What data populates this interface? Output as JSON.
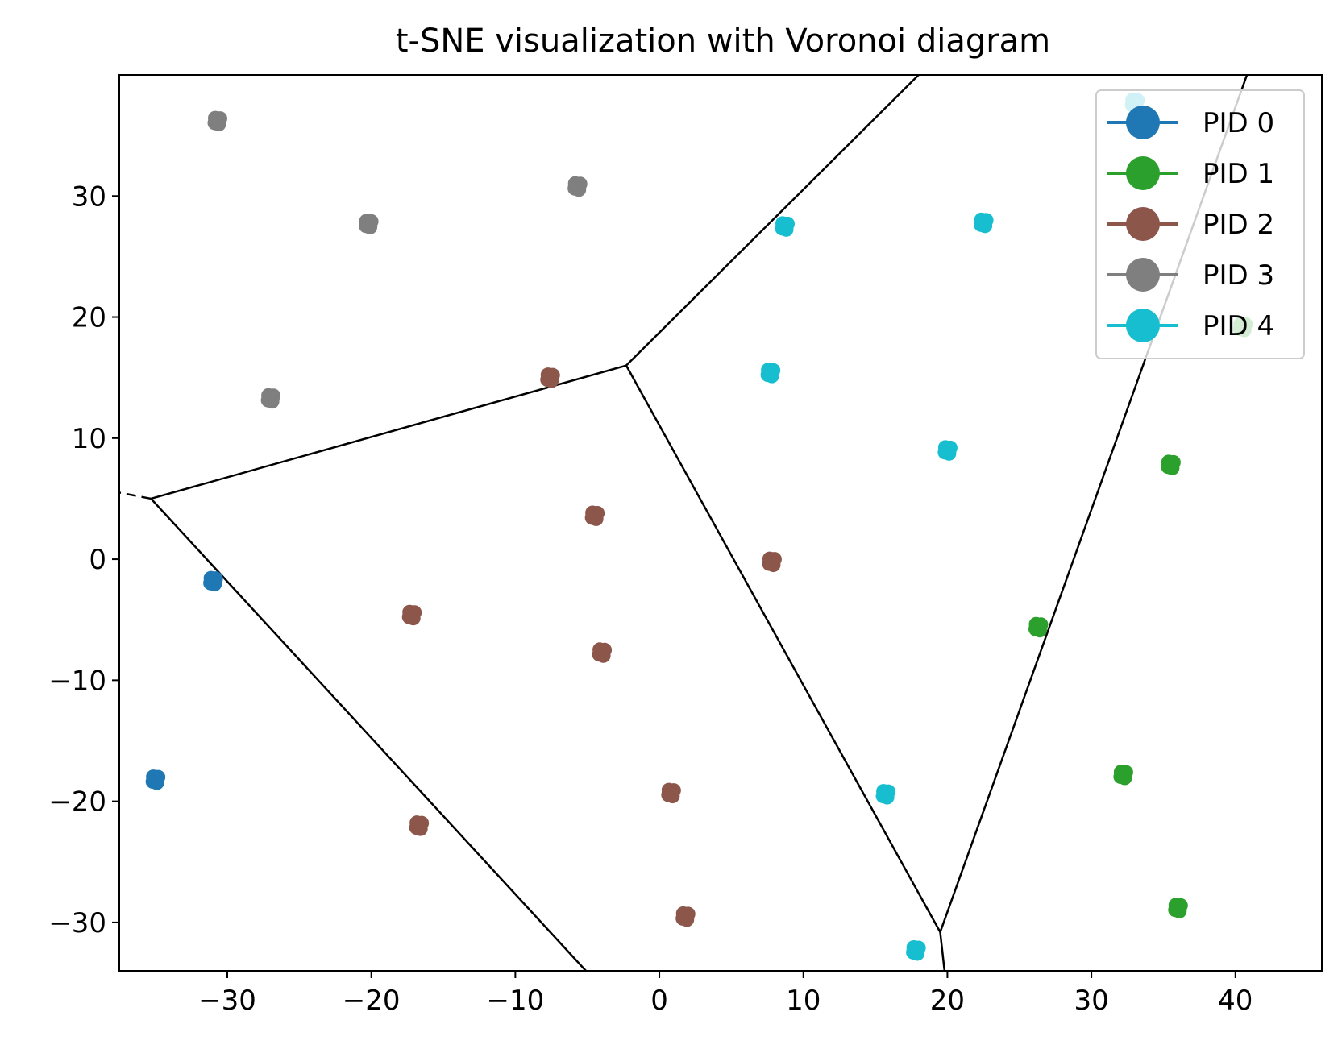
{
  "chart_data": {
    "type": "scatter",
    "title": "t-SNE visualization with Voronoi diagram",
    "xlabel": "",
    "ylabel": "",
    "xlim": [
      -37.5,
      46
    ],
    "ylim": [
      -34,
      40
    ],
    "xticks": [
      -30,
      -20,
      -10,
      0,
      10,
      20,
      30,
      40
    ],
    "yticks": [
      -30,
      -20,
      -10,
      0,
      10,
      20,
      30
    ],
    "xtick_labels": [
      "−30",
      "−20",
      "−10",
      "0",
      "10",
      "20",
      "30",
      "40"
    ],
    "ytick_labels": [
      "−30",
      "−20",
      "−10",
      "0",
      "10",
      "20",
      "30"
    ],
    "grid": false,
    "legend_placement": "top-right",
    "series": [
      {
        "name": "PID 0",
        "color": "#1f77b4",
        "points": [
          [
            -31.0,
            -1.8
          ],
          [
            -35.0,
            -18.2
          ]
        ]
      },
      {
        "name": "PID 1",
        "color": "#2ca02c",
        "points": [
          [
            35.5,
            7.8
          ],
          [
            26.3,
            -5.6
          ],
          [
            32.2,
            -17.8
          ],
          [
            36.0,
            -28.8
          ],
          [
            40.5,
            19.2
          ]
        ]
      },
      {
        "name": "PID 2",
        "color": "#8c564b",
        "points": [
          [
            -7.6,
            15.0
          ],
          [
            -4.5,
            3.6
          ],
          [
            -17.2,
            -4.6
          ],
          [
            -4.0,
            -7.7
          ],
          [
            7.8,
            -0.2
          ],
          [
            0.8,
            -19.3
          ],
          [
            -16.7,
            -22.0
          ],
          [
            1.8,
            -29.5
          ]
        ]
      },
      {
        "name": "PID 3",
        "color": "#7f7f7f",
        "points": [
          [
            -30.7,
            36.2
          ],
          [
            -5.7,
            30.8
          ],
          [
            -20.2,
            27.7
          ],
          [
            -27.0,
            13.3
          ]
        ]
      },
      {
        "name": "PID 4",
        "color": "#17becf",
        "points": [
          [
            8.7,
            27.5
          ],
          [
            22.5,
            27.8
          ],
          [
            7.7,
            15.4
          ],
          [
            20.0,
            9.0
          ],
          [
            15.7,
            -19.4
          ],
          [
            17.8,
            -32.3
          ],
          [
            33.0,
            37.7
          ]
        ]
      }
    ],
    "voronoi_vertices": [
      [
        -35.3,
        5.0
      ],
      [
        -2.3,
        16.0
      ],
      [
        19.5,
        -30.8
      ]
    ],
    "voronoi_edges": [
      {
        "from": [
          -35.3,
          5.0
        ],
        "to": [
          -2.3,
          16.0
        ],
        "style": "solid"
      },
      {
        "from": [
          -2.3,
          16.0
        ],
        "to": [
          18.0,
          40.0
        ],
        "style": "solid"
      },
      {
        "from": [
          -2.3,
          16.0
        ],
        "to": [
          19.5,
          -30.8
        ],
        "style": "solid"
      },
      {
        "from": [
          -35.3,
          5.0
        ],
        "to": [
          -5.1,
          -34.0
        ],
        "style": "solid"
      },
      {
        "from": [
          19.5,
          -30.8
        ],
        "to": [
          19.8,
          -34.0
        ],
        "style": "solid"
      },
      {
        "from": [
          19.5,
          -30.8
        ],
        "to": [
          40.8,
          40.0
        ],
        "style": "solid"
      },
      {
        "from": [
          -35.3,
          5.0
        ],
        "to": [
          -37.5,
          5.5
        ],
        "style": "dashed"
      }
    ],
    "colors": {
      "edge": "#000000",
      "frame": "#000000",
      "legend_border": "#cccccc"
    }
  }
}
